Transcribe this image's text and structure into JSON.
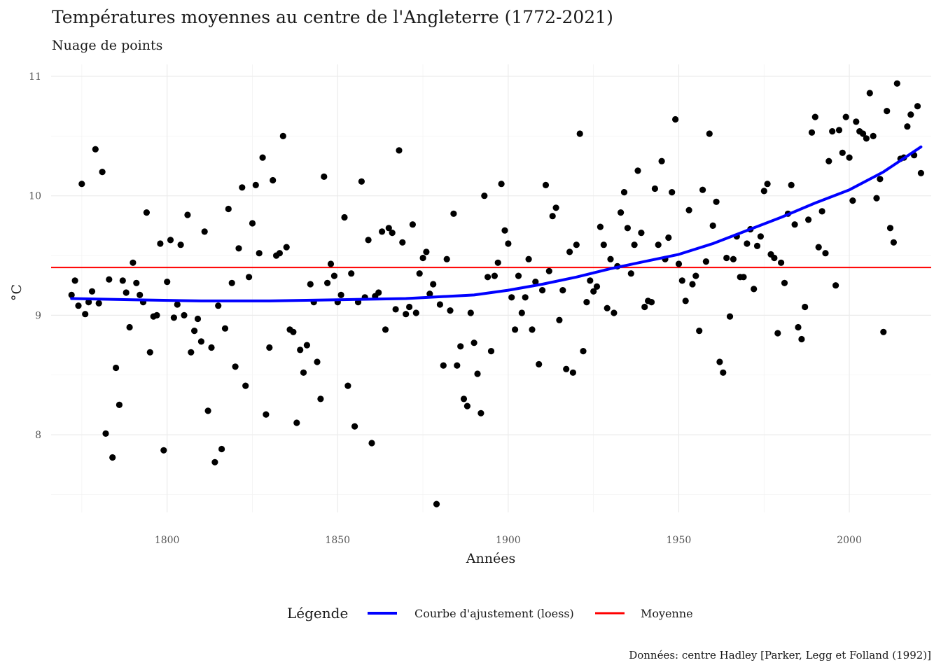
{
  "chart_data": {
    "type": "scatter",
    "title": "Températures moyennes au centre de l'Angleterre (1772-2021)",
    "subtitle": "Nuage de points",
    "xlabel": "Années",
    "ylabel": "°C",
    "caption": "Données: centre Hadley [Parker, Legg et Folland (1992)]",
    "xlim": [
      1766,
      2024
    ],
    "ylim": [
      7.35,
      11.1
    ],
    "x_ticks": [
      1800,
      1850,
      1900,
      1950,
      2000
    ],
    "y_ticks": [
      8,
      9,
      10,
      11
    ],
    "x_tick_labels": [
      "1800",
      "1850",
      "1900",
      "1950",
      "2000"
    ],
    "y_tick_labels": [
      "8",
      "9",
      "10",
      "11"
    ],
    "grid": true,
    "legend": {
      "title": "Légende",
      "position": "bottom",
      "items": [
        {
          "label": "Courbe d'ajustement (loess)",
          "color": "#0000ff"
        },
        {
          "label": "Moyenne",
          "color": "#ff0000"
        }
      ]
    },
    "colors": {
      "points": "#000000",
      "loess": "#0000ff",
      "mean": "#ff0000"
    },
    "mean_line": {
      "name": "Moyenne",
      "y": 9.4
    },
    "loess": {
      "name": "Courbe d'ajustement (loess)",
      "x": [
        1772,
        1790,
        1810,
        1830,
        1850,
        1870,
        1890,
        1900,
        1910,
        1920,
        1930,
        1940,
        1950,
        1960,
        1970,
        1980,
        1990,
        2000,
        2010,
        2021
      ],
      "y": [
        9.14,
        9.13,
        9.12,
        9.12,
        9.13,
        9.14,
        9.17,
        9.21,
        9.26,
        9.32,
        9.39,
        9.45,
        9.51,
        9.6,
        9.71,
        9.82,
        9.94,
        10.05,
        10.2,
        10.41
      ]
    },
    "points": {
      "x": [
        1772,
        1773,
        1774,
        1775,
        1776,
        1777,
        1778,
        1779,
        1780,
        1781,
        1782,
        1783,
        1784,
        1785,
        1786,
        1787,
        1788,
        1789,
        1790,
        1791,
        1792,
        1793,
        1794,
        1795,
        1796,
        1797,
        1798,
        1799,
        1800,
        1801,
        1802,
        1803,
        1804,
        1805,
        1806,
        1807,
        1808,
        1809,
        1810,
        1811,
        1812,
        1813,
        1814,
        1815,
        1816,
        1817,
        1818,
        1819,
        1820,
        1821,
        1822,
        1823,
        1824,
        1825,
        1826,
        1827,
        1828,
        1829,
        1830,
        1831,
        1832,
        1833,
        1834,
        1835,
        1836,
        1837,
        1838,
        1839,
        1840,
        1841,
        1842,
        1843,
        1844,
        1845,
        1846,
        1847,
        1848,
        1849,
        1850,
        1851,
        1852,
        1853,
        1854,
        1855,
        1856,
        1857,
        1858,
        1859,
        1860,
        1861,
        1862,
        1863,
        1864,
        1865,
        1866,
        1867,
        1868,
        1869,
        1870,
        1871,
        1872,
        1873,
        1874,
        1875,
        1876,
        1877,
        1878,
        1879,
        1880,
        1881,
        1882,
        1883,
        1884,
        1885,
        1886,
        1887,
        1888,
        1889,
        1890,
        1891,
        1892,
        1893,
        1894,
        1895,
        1896,
        1897,
        1898,
        1899,
        1900,
        1901,
        1902,
        1903,
        1904,
        1905,
        1906,
        1907,
        1908,
        1909,
        1910,
        1911,
        1912,
        1913,
        1914,
        1915,
        1916,
        1917,
        1918,
        1919,
        1920,
        1921,
        1922,
        1923,
        1924,
        1925,
        1926,
        1927,
        1928,
        1929,
        1930,
        1931,
        1932,
        1933,
        1934,
        1935,
        1936,
        1937,
        1938,
        1939,
        1940,
        1941,
        1942,
        1943,
        1944,
        1945,
        1946,
        1947,
        1948,
        1949,
        1950,
        1951,
        1952,
        1953,
        1954,
        1955,
        1956,
        1957,
        1958,
        1959,
        1960,
        1961,
        1962,
        1963,
        1964,
        1965,
        1966,
        1967,
        1968,
        1969,
        1970,
        1971,
        1972,
        1973,
        1974,
        1975,
        1976,
        1977,
        1978,
        1979,
        1980,
        1981,
        1982,
        1983,
        1984,
        1985,
        1986,
        1987,
        1988,
        1989,
        1990,
        1991,
        1992,
        1993,
        1994,
        1995,
        1996,
        1997,
        1998,
        1999,
        2000,
        2001,
        2002,
        2003,
        2004,
        2005,
        2006,
        2007,
        2008,
        2009,
        2010,
        2011,
        2012,
        2013,
        2014,
        2015,
        2016,
        2017,
        2018,
        2019,
        2020,
        2021
      ],
      "y": [
        9.17,
        9.29,
        9.08,
        10.1,
        9.01,
        9.11,
        9.2,
        10.39,
        9.1,
        10.2,
        8.01,
        9.3,
        7.81,
        8.56,
        8.25,
        9.29,
        9.19,
        8.9,
        9.44,
        9.27,
        9.17,
        9.11,
        9.86,
        8.69,
        8.99,
        9.0,
        9.6,
        7.87,
        9.28,
        9.63,
        8.98,
        9.09,
        9.59,
        9.0,
        9.84,
        8.69,
        8.87,
        8.97,
        8.78,
        9.7,
        8.2,
        8.73,
        7.77,
        9.08,
        7.88,
        8.89,
        9.89,
        9.27,
        8.57,
        9.56,
        10.07,
        8.41,
        9.32,
        9.77,
        10.09,
        9.52,
        10.32,
        8.17,
        8.73,
        10.13,
        9.5,
        9.52,
        10.5,
        9.57,
        8.88,
        8.86,
        8.1,
        8.71,
        8.52,
        8.75,
        9.26,
        9.11,
        8.61,
        8.3,
        10.16,
        9.27,
        9.43,
        9.33,
        9.11,
        9.17,
        9.82,
        8.41,
        9.35,
        8.07,
        9.11,
        10.12,
        9.15,
        9.63,
        7.93,
        9.16,
        9.19,
        9.7,
        8.88,
        9.73,
        9.69,
        9.05,
        10.38,
        9.61,
        9.01,
        9.07,
        9.76,
        9.02,
        9.35,
        9.48,
        9.53,
        9.18,
        9.26,
        7.42,
        9.09,
        8.58,
        9.47,
        9.04,
        9.85,
        8.58,
        8.74,
        8.3,
        8.24,
        9.02,
        8.77,
        8.51,
        8.18,
        10.0,
        9.32,
        8.7,
        9.33,
        9.44,
        10.1,
        9.71,
        9.6,
        9.15,
        8.88,
        9.33,
        9.02,
        9.15,
        9.47,
        8.88,
        9.28,
        8.59,
        9.21,
        10.09,
        9.37,
        9.83,
        9.9,
        8.96,
        9.21,
        8.55,
        9.53,
        8.52,
        9.59,
        10.52,
        8.7,
        9.11,
        9.29,
        9.2,
        9.24,
        9.74,
        9.59,
        9.06,
        9.47,
        9.02,
        9.41,
        9.86,
        10.03,
        9.73,
        9.35,
        9.59,
        10.21,
        9.69,
        9.07,
        9.12,
        9.11,
        10.06,
        9.59,
        10.29,
        9.47,
        9.65,
        10.03,
        10.64,
        9.43,
        9.29,
        9.12,
        9.88,
        9.26,
        9.33,
        8.87,
        10.05,
        9.45,
        10.52,
        9.75,
        9.95,
        8.61,
        8.52,
        9.48,
        8.99,
        9.47,
        9.66,
        9.32,
        9.32,
        9.6,
        9.72,
        9.22,
        9.58,
        9.66,
        10.04,
        10.1,
        9.51,
        9.48,
        8.85,
        9.44,
        9.27,
        9.85,
        10.09,
        9.76,
        8.9,
        8.8,
        9.07,
        9.8,
        10.53,
        10.66,
        9.57,
        9.87,
        9.52,
        10.29,
        10.54,
        9.25,
        10.55,
        10.36,
        10.66,
        10.32,
        9.96,
        10.62,
        10.54,
        10.52,
        10.48,
        10.86,
        10.5,
        9.98,
        10.14,
        8.86,
        10.71,
        9.73,
        9.61,
        10.94,
        10.31,
        10.32,
        10.58,
        10.68,
        10.34,
        10.75,
        10.19
      ]
    }
  }
}
